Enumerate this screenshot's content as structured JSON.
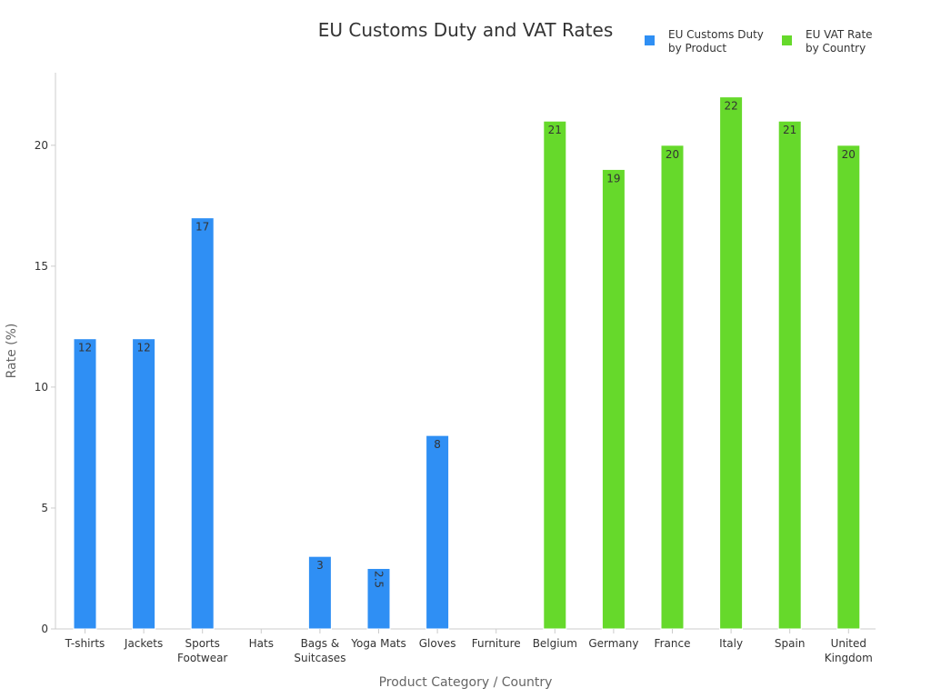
{
  "chart_data": {
    "type": "bar",
    "title": "EU Customs Duty and VAT Rates",
    "xlabel": "Product Category / Country",
    "ylabel": "Rate (%)",
    "ylim": [
      0,
      23
    ],
    "yticks": [
      "0",
      "5",
      "10",
      "15",
      "20"
    ],
    "categories": [
      [
        "T-shirts"
      ],
      [
        "Jackets"
      ],
      [
        "Sports",
        "Footwear"
      ],
      [
        "Hats"
      ],
      [
        "Bags &",
        "Suitcases"
      ],
      [
        "Yoga Mats"
      ],
      [
        "Gloves"
      ],
      [
        "Furniture"
      ],
      [
        "Belgium"
      ],
      [
        "Germany"
      ],
      [
        "France"
      ],
      [
        "Italy"
      ],
      [
        "Spain"
      ],
      [
        "United",
        "Kingdom"
      ]
    ],
    "legend_position": "top-right",
    "grid": false,
    "series": [
      {
        "name": [
          "EU Customs Duty",
          "by Product"
        ],
        "color": "#2f8ff4",
        "values": [
          12,
          12,
          17,
          null,
          3,
          2.5,
          8,
          null,
          null,
          null,
          null,
          null,
          null,
          null
        ],
        "labels": [
          "12",
          "12",
          "17",
          "",
          "3",
          "2.5",
          "8",
          "",
          "",
          "",
          "",
          "",
          "",
          ""
        ]
      },
      {
        "name": [
          "EU VAT Rate",
          "by Country"
        ],
        "color": "#66d92b",
        "values": [
          null,
          null,
          null,
          null,
          null,
          null,
          null,
          null,
          21,
          19,
          20,
          22,
          21,
          20
        ],
        "labels": [
          "",
          "",
          "",
          "",
          "",
          "",
          "",
          "",
          "21",
          "19",
          "20",
          "22",
          "21",
          "20"
        ]
      }
    ]
  }
}
